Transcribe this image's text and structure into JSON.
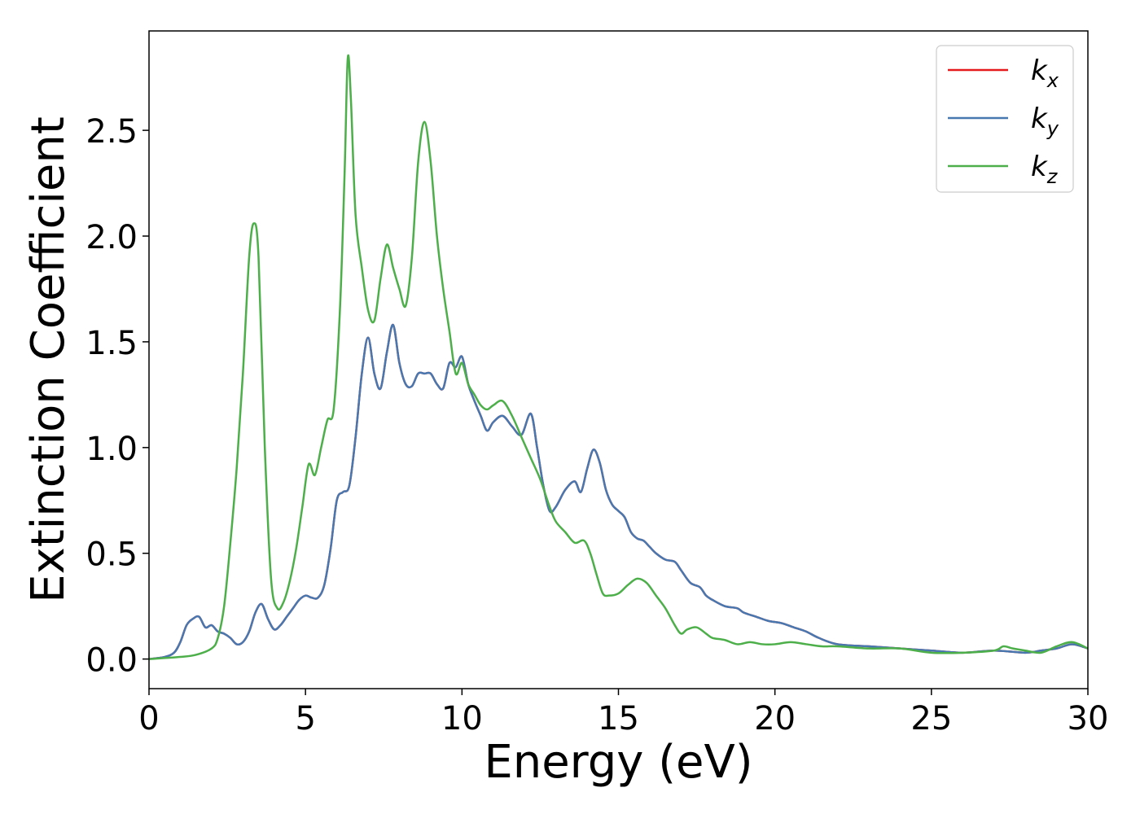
{
  "chart_data": {
    "type": "line",
    "title": "",
    "xlabel": "Energy (eV)",
    "ylabel": "Extinction Coefficient",
    "xlim": [
      0,
      30
    ],
    "ylim": [
      -0.14,
      2.97
    ],
    "xticks": [
      0,
      5,
      10,
      15,
      20,
      25,
      30
    ],
    "xtick_labels": [
      "0",
      "5",
      "10",
      "15",
      "20",
      "25",
      "30"
    ],
    "yticks": [
      0.0,
      0.5,
      1.0,
      1.5,
      2.0,
      2.5
    ],
    "ytick_labels": [
      "0.0",
      "0.5",
      "1.0",
      "1.5",
      "2.0",
      "2.5"
    ],
    "grid": false,
    "legend_position": "top-right",
    "series": [
      {
        "name": "k_x",
        "label_base": "k",
        "label_sub": "x",
        "color": "#e41a1c",
        "x": [
          0,
          0.5,
          0.8,
          1.0,
          1.2,
          1.4,
          1.6,
          1.8,
          2.0,
          2.2,
          2.4,
          2.6,
          2.8,
          3.0,
          3.2,
          3.4,
          3.6,
          3.8,
          4.0,
          4.2,
          4.4,
          4.6,
          4.8,
          5.0,
          5.2,
          5.4,
          5.6,
          5.8,
          6.0,
          6.2,
          6.4,
          6.6,
          6.8,
          7.0,
          7.2,
          7.4,
          7.6,
          7.8,
          8.0,
          8.2,
          8.4,
          8.6,
          8.8,
          9.0,
          9.2,
          9.4,
          9.6,
          9.8,
          10.0,
          10.2,
          10.4,
          10.6,
          10.8,
          11.0,
          11.3,
          11.6,
          11.9,
          12.2,
          12.4,
          12.6,
          12.8,
          13.0,
          13.3,
          13.6,
          13.8,
          14.0,
          14.2,
          14.4,
          14.6,
          14.8,
          15.0,
          15.2,
          15.4,
          15.6,
          15.8,
          16.0,
          16.2,
          16.5,
          16.8,
          17.0,
          17.3,
          17.6,
          17.8,
          18.0,
          18.4,
          18.8,
          19.0,
          19.4,
          19.8,
          20.2,
          20.6,
          21.0,
          21.4,
          22.0,
          23.0,
          24.0,
          25.0,
          26.0,
          27.0,
          28.0,
          28.5,
          29.0,
          29.5,
          30.0
        ],
        "values": [
          0.0,
          0.01,
          0.03,
          0.08,
          0.16,
          0.19,
          0.2,
          0.15,
          0.16,
          0.13,
          0.12,
          0.1,
          0.07,
          0.08,
          0.13,
          0.22,
          0.26,
          0.19,
          0.14,
          0.16,
          0.2,
          0.24,
          0.28,
          0.3,
          0.29,
          0.29,
          0.35,
          0.52,
          0.75,
          0.79,
          0.82,
          1.05,
          1.35,
          1.52,
          1.35,
          1.28,
          1.45,
          1.58,
          1.4,
          1.3,
          1.29,
          1.35,
          1.35,
          1.35,
          1.3,
          1.28,
          1.4,
          1.38,
          1.43,
          1.3,
          1.22,
          1.15,
          1.08,
          1.12,
          1.15,
          1.1,
          1.06,
          1.16,
          1.0,
          0.82,
          0.7,
          0.72,
          0.8,
          0.84,
          0.79,
          0.9,
          0.99,
          0.93,
          0.8,
          0.73,
          0.7,
          0.67,
          0.6,
          0.57,
          0.56,
          0.53,
          0.5,
          0.47,
          0.46,
          0.42,
          0.36,
          0.34,
          0.3,
          0.28,
          0.25,
          0.24,
          0.22,
          0.2,
          0.18,
          0.17,
          0.15,
          0.13,
          0.1,
          0.07,
          0.06,
          0.05,
          0.04,
          0.03,
          0.04,
          0.03,
          0.04,
          0.05,
          0.07,
          0.05
        ]
      },
      {
        "name": "k_y",
        "label_base": "k",
        "label_sub": "y",
        "color": "#4878b0",
        "x": [
          0,
          0.5,
          0.8,
          1.0,
          1.2,
          1.4,
          1.6,
          1.8,
          2.0,
          2.2,
          2.4,
          2.6,
          2.8,
          3.0,
          3.2,
          3.4,
          3.6,
          3.8,
          4.0,
          4.2,
          4.4,
          4.6,
          4.8,
          5.0,
          5.2,
          5.4,
          5.6,
          5.8,
          6.0,
          6.2,
          6.4,
          6.6,
          6.8,
          7.0,
          7.2,
          7.4,
          7.6,
          7.8,
          8.0,
          8.2,
          8.4,
          8.6,
          8.8,
          9.0,
          9.2,
          9.4,
          9.6,
          9.8,
          10.0,
          10.2,
          10.4,
          10.6,
          10.8,
          11.0,
          11.3,
          11.6,
          11.9,
          12.2,
          12.4,
          12.6,
          12.8,
          13.0,
          13.3,
          13.6,
          13.8,
          14.0,
          14.2,
          14.4,
          14.6,
          14.8,
          15.0,
          15.2,
          15.4,
          15.6,
          15.8,
          16.0,
          16.2,
          16.5,
          16.8,
          17.0,
          17.3,
          17.6,
          17.8,
          18.0,
          18.4,
          18.8,
          19.0,
          19.4,
          19.8,
          20.2,
          20.6,
          21.0,
          21.4,
          22.0,
          23.0,
          24.0,
          25.0,
          26.0,
          27.0,
          28.0,
          28.5,
          29.0,
          29.5,
          30.0
        ],
        "values": [
          0.0,
          0.01,
          0.03,
          0.08,
          0.16,
          0.19,
          0.2,
          0.15,
          0.16,
          0.13,
          0.12,
          0.1,
          0.07,
          0.08,
          0.13,
          0.22,
          0.26,
          0.19,
          0.14,
          0.16,
          0.2,
          0.24,
          0.28,
          0.3,
          0.29,
          0.29,
          0.35,
          0.52,
          0.75,
          0.79,
          0.82,
          1.05,
          1.35,
          1.52,
          1.35,
          1.28,
          1.45,
          1.58,
          1.4,
          1.3,
          1.29,
          1.35,
          1.35,
          1.35,
          1.3,
          1.28,
          1.4,
          1.38,
          1.43,
          1.3,
          1.22,
          1.15,
          1.08,
          1.12,
          1.15,
          1.1,
          1.06,
          1.16,
          1.0,
          0.82,
          0.7,
          0.72,
          0.8,
          0.84,
          0.79,
          0.9,
          0.99,
          0.93,
          0.8,
          0.73,
          0.7,
          0.67,
          0.6,
          0.57,
          0.56,
          0.53,
          0.5,
          0.47,
          0.46,
          0.42,
          0.36,
          0.34,
          0.3,
          0.28,
          0.25,
          0.24,
          0.22,
          0.2,
          0.18,
          0.17,
          0.15,
          0.13,
          0.1,
          0.07,
          0.06,
          0.05,
          0.04,
          0.03,
          0.04,
          0.03,
          0.04,
          0.05,
          0.07,
          0.05
        ]
      },
      {
        "name": "k_z",
        "label_base": "k",
        "label_sub": "z",
        "color": "#4daf4a",
        "x": [
          0,
          1.0,
          1.5,
          2.0,
          2.2,
          2.4,
          2.6,
          2.8,
          3.0,
          3.2,
          3.35,
          3.5,
          3.7,
          3.9,
          4.1,
          4.3,
          4.5,
          4.7,
          4.9,
          5.1,
          5.3,
          5.5,
          5.7,
          5.9,
          6.1,
          6.25,
          6.35,
          6.45,
          6.6,
          6.8,
          7.0,
          7.2,
          7.4,
          7.6,
          7.8,
          8.0,
          8.2,
          8.4,
          8.6,
          8.8,
          9.0,
          9.2,
          9.4,
          9.6,
          9.8,
          10.0,
          10.2,
          10.4,
          10.6,
          10.8,
          11.0,
          11.3,
          11.6,
          11.9,
          12.2,
          12.5,
          12.8,
          13.0,
          13.3,
          13.6,
          13.9,
          14.1,
          14.3,
          14.5,
          14.7,
          15.0,
          15.3,
          15.6,
          15.9,
          16.2,
          16.5,
          16.8,
          17.0,
          17.2,
          17.5,
          17.8,
          18.0,
          18.4,
          18.8,
          19.2,
          19.6,
          20.0,
          20.5,
          21.0,
          21.5,
          22.0,
          23.0,
          24.0,
          25.0,
          26.0,
          27.0,
          27.3,
          27.6,
          28.0,
          28.5,
          29.0,
          29.5,
          30.0
        ],
        "values": [
          0.0,
          0.01,
          0.02,
          0.05,
          0.1,
          0.25,
          0.55,
          0.9,
          1.35,
          1.9,
          2.06,
          1.9,
          1.0,
          0.38,
          0.24,
          0.27,
          0.37,
          0.52,
          0.72,
          0.92,
          0.87,
          1.0,
          1.13,
          1.18,
          1.65,
          2.3,
          2.84,
          2.65,
          2.1,
          1.85,
          1.65,
          1.6,
          1.8,
          1.96,
          1.85,
          1.75,
          1.67,
          1.9,
          2.35,
          2.54,
          2.35,
          2.0,
          1.75,
          1.55,
          1.35,
          1.4,
          1.3,
          1.25,
          1.2,
          1.18,
          1.2,
          1.22,
          1.15,
          1.05,
          0.95,
          0.85,
          0.72,
          0.65,
          0.6,
          0.55,
          0.56,
          0.5,
          0.4,
          0.31,
          0.3,
          0.31,
          0.35,
          0.38,
          0.36,
          0.3,
          0.24,
          0.16,
          0.12,
          0.14,
          0.15,
          0.12,
          0.1,
          0.09,
          0.07,
          0.08,
          0.07,
          0.07,
          0.08,
          0.07,
          0.06,
          0.06,
          0.05,
          0.05,
          0.03,
          0.03,
          0.04,
          0.06,
          0.05,
          0.04,
          0.03,
          0.06,
          0.08,
          0.05
        ]
      }
    ]
  }
}
